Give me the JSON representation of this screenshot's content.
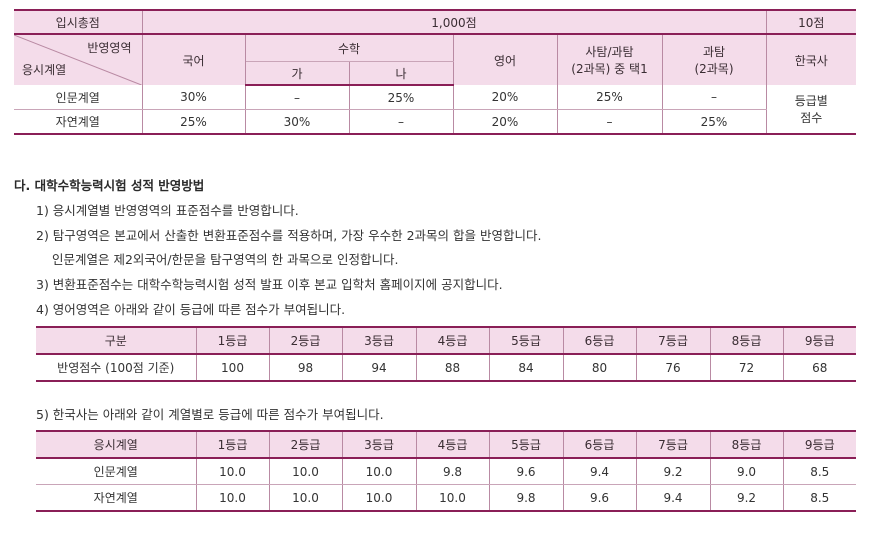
{
  "top_table": {
    "total_label": "입시총점",
    "total_value": "1,000점",
    "hist_value": "10점",
    "diag_top": "반영영역",
    "diag_bottom": "응시계열",
    "korean": "국어",
    "math": "수학",
    "math_a": "가",
    "math_b": "나",
    "english": "영어",
    "inquiry_line1": "사탐/과탐",
    "inquiry_line2": "(2과목) 중 택1",
    "science_line1": "과탐",
    "science_line2": "(2과목)",
    "history": "한국사",
    "rows": [
      {
        "track": "인문계열",
        "korean": "30%",
        "math_a": "–",
        "math_b": "25%",
        "english": "20%",
        "inquiry": "25%",
        "science": "–"
      },
      {
        "track": "자연계열",
        "korean": "25%",
        "math_a": "30%",
        "math_b": "–",
        "english": "20%",
        "inquiry": "–",
        "science": "25%"
      }
    ],
    "history_note_line1": "등급별",
    "history_note_line2": "점수"
  },
  "section": {
    "heading": "다. 대학수학능력시험 성적 반영방법",
    "item1": "1) 응시계열별 반영영역의 표준점수를 반영합니다.",
    "item2": "2) 탐구영역은 본교에서 산출한 변환표준점수를 적용하며, 가장 우수한 2과목의 합을 반영합니다.",
    "item2_note": "인문계열은 제2외국어/한문을 탐구영역의 한 과목으로 인정합니다.",
    "item3": "3) 변환표준점수는 대학수학능력시험 성적 발표 이후 본교 입학처 홈페이지에 공지합니다.",
    "item4": "4) 영어영역은 아래와 같이 등급에 따른 점수가 부여됩니다.",
    "item5": "5) 한국사는 아래와 같이 계열별로 등급에 따른 점수가 부여됩니다."
  },
  "english_table": {
    "header": [
      "구분",
      "1등급",
      "2등급",
      "3등급",
      "4등급",
      "5등급",
      "6등급",
      "7등급",
      "8등급",
      "9등급"
    ],
    "row": [
      "반영점수 (100점 기준)",
      "100",
      "98",
      "94",
      "88",
      "84",
      "80",
      "76",
      "72",
      "68"
    ]
  },
  "history_table": {
    "header": [
      "응시계열",
      "1등급",
      "2등급",
      "3등급",
      "4등급",
      "5등급",
      "6등급",
      "7등급",
      "8등급",
      "9등급"
    ],
    "rows": [
      [
        "인문계열",
        "10.0",
        "10.0",
        "10.0",
        "9.8",
        "9.6",
        "9.4",
        "9.2",
        "9.0",
        "8.5"
      ],
      [
        "자연계열",
        "10.0",
        "10.0",
        "10.0",
        "10.0",
        "9.8",
        "9.6",
        "9.4",
        "9.2",
        "8.5"
      ]
    ]
  }
}
